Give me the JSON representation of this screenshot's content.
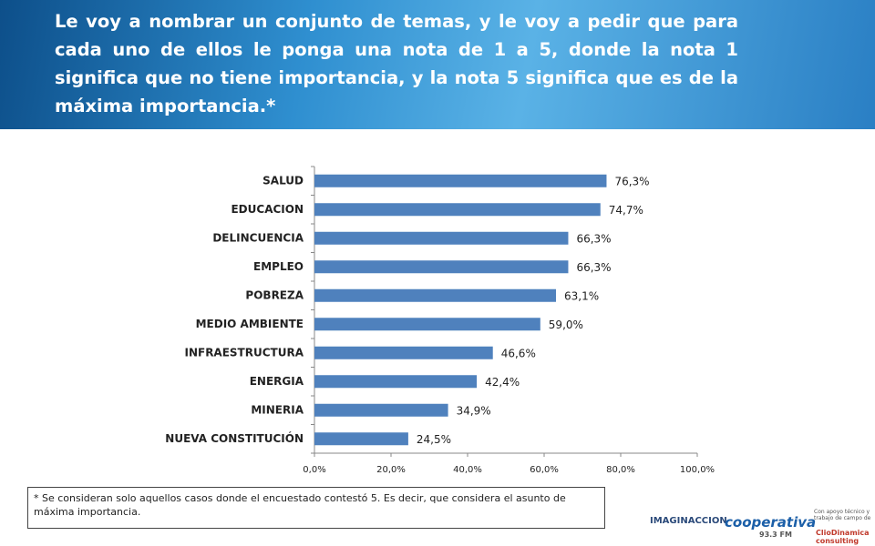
{
  "chart_data": {
    "type": "bar",
    "orientation": "horizontal",
    "title": "Le voy a nombrar un conjunto de temas, y le voy a pedir que para cada uno de ellos le ponga una nota de 1 a 5, donde la nota 1 significa que no tiene importancia, y la nota 5 significa que es de la máxima importancia.*",
    "categories": [
      "SALUD",
      "EDUCACION",
      "DELINCUENCIA",
      "EMPLEO",
      "POBREZA",
      "MEDIO AMBIENTE",
      "INFRAESTRUCTURA",
      "ENERGIA",
      "MINERIA",
      "NUEVA CONSTITUCIÓN"
    ],
    "values": [
      76.3,
      74.7,
      66.3,
      66.3,
      63.1,
      59.0,
      46.6,
      42.4,
      34.9,
      24.5
    ],
    "value_labels": [
      "76,3%",
      "74,7%",
      "66,3%",
      "66,3%",
      "63,1%",
      "59,0%",
      "46,6%",
      "42,4%",
      "34,9%",
      "24,5%"
    ],
    "color": "#4f81bd",
    "xlim": [
      0,
      100
    ],
    "xticks": [
      {
        "value": 0,
        "label": "0,0%"
      },
      {
        "value": 20,
        "label": "20,0%"
      },
      {
        "value": 40,
        "label": "40,0%"
      },
      {
        "value": 60,
        "label": "60,0%"
      },
      {
        "value": 80,
        "label": "80,0%"
      },
      {
        "value": 100,
        "label": "100,0%"
      }
    ],
    "footnote": "* Se consideran solo aquellos casos donde el encuestado contestó 5. Es decir, que considera el asunto de máxima importancia."
  },
  "logos": [
    "IMAGINACCION",
    "cooperativa",
    "93.3 FM",
    "Con apoyo técnico y trabajo de campo de",
    "ClioDinamica consulting"
  ]
}
